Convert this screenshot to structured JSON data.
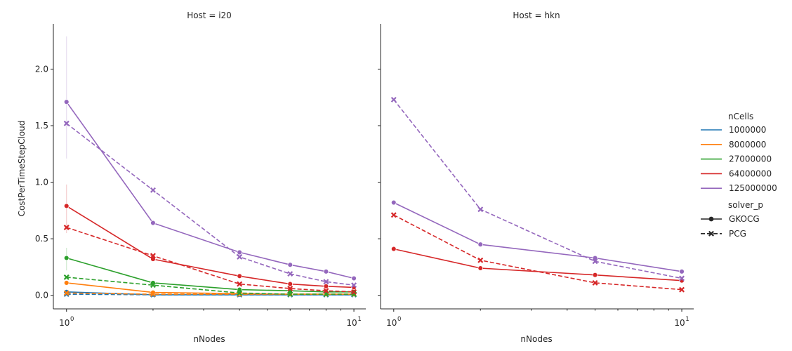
{
  "chart_data": [
    {
      "type": "line",
      "title": "Host = i20",
      "xlabel": "nNodes",
      "ylabel": "CostPerTimeStepCloud",
      "xscale": "log",
      "xlim": [
        0.9,
        11
      ],
      "ylim": [
        -0.12,
        2.4
      ],
      "yticks": [
        "0.0",
        "0.5",
        "1.0",
        "1.5",
        "2.0"
      ],
      "xticks": [
        "10",
        "10"
      ],
      "xtick_sup": [
        "0",
        "1"
      ],
      "series": [
        {
          "name": "1000000",
          "style": "GKOCG",
          "color": "#1f77b4",
          "x": [
            1,
            2,
            4,
            6,
            8,
            10
          ],
          "y": [
            0.03,
            0.005,
            0.005,
            0.005,
            0.005,
            0.005
          ]
        },
        {
          "name": "1000000",
          "style": "PCG",
          "color": "#1f77b4",
          "x": [
            1,
            2,
            4,
            6,
            8,
            10
          ],
          "y": [
            0.01,
            0.005,
            0.005,
            0.005,
            0.005,
            0.005
          ]
        },
        {
          "name": "8000000",
          "style": "GKOCG",
          "color": "#ff7f0e",
          "x": [
            1,
            2,
            4,
            6,
            8,
            10
          ],
          "y": [
            0.11,
            0.025,
            0.015,
            0.01,
            0.01,
            0.01
          ]
        },
        {
          "name": "8000000",
          "style": "PCG",
          "color": "#ff7f0e",
          "x": [
            1,
            2,
            4,
            6,
            8,
            10
          ],
          "y": [
            0.02,
            0.01,
            0.01,
            0.01,
            0.01,
            0.01
          ]
        },
        {
          "name": "27000000",
          "style": "GKOCG",
          "color": "#2ca02c",
          "x": [
            1,
            2,
            4,
            6,
            8,
            10
          ],
          "y": [
            0.33,
            0.11,
            0.05,
            0.04,
            0.03,
            0.03
          ]
        },
        {
          "name": "27000000",
          "style": "PCG",
          "color": "#2ca02c",
          "x": [
            1,
            2,
            4,
            6,
            8,
            10
          ],
          "y": [
            0.16,
            0.09,
            0.02,
            0.01,
            0.01,
            0.01
          ]
        },
        {
          "name": "64000000",
          "style": "GKOCG",
          "color": "#d62728",
          "x": [
            1,
            2,
            4,
            6,
            8,
            10
          ],
          "y": [
            0.79,
            0.32,
            0.17,
            0.1,
            0.08,
            0.07
          ]
        },
        {
          "name": "64000000",
          "style": "PCG",
          "color": "#d62728",
          "x": [
            1,
            2,
            4,
            6,
            8,
            10
          ],
          "y": [
            0.6,
            0.35,
            0.1,
            0.06,
            0.04,
            0.03
          ]
        },
        {
          "name": "125000000",
          "style": "GKOCG",
          "color": "#9467bd",
          "x": [
            1,
            2,
            4,
            6,
            8,
            10
          ],
          "y": [
            1.71,
            0.64,
            0.38,
            0.27,
            0.21,
            0.15
          ]
        },
        {
          "name": "125000000",
          "style": "PCG",
          "color": "#9467bd",
          "x": [
            1,
            2,
            4,
            6,
            8,
            10
          ],
          "y": [
            1.52,
            0.93,
            0.34,
            0.19,
            0.12,
            0.09
          ]
        }
      ],
      "error_bands": [
        {
          "series": "125000000",
          "style": "GKOCG",
          "color": "#9467bd",
          "x": 1,
          "low": 1.21,
          "high": 2.29
        },
        {
          "series": "64000000",
          "style": "GKOCG",
          "color": "#d62728",
          "x": 1,
          "low": 0.55,
          "high": 0.98
        },
        {
          "series": "27000000",
          "style": "GKOCG",
          "color": "#2ca02c",
          "x": 1,
          "low": 0.22,
          "high": 0.42
        }
      ]
    },
    {
      "type": "line",
      "title": "Host = hkn",
      "xlabel": "nNodes",
      "ylabel": "",
      "xscale": "log",
      "xlim": [
        0.9,
        11
      ],
      "ylim": [
        -0.12,
        2.4
      ],
      "xticks": [
        "10",
        "10"
      ],
      "xtick_sup": [
        "0",
        "1"
      ],
      "series": [
        {
          "name": "64000000",
          "style": "GKOCG",
          "color": "#d62728",
          "x": [
            1,
            2,
            5,
            10
          ],
          "y": [
            0.41,
            0.24,
            0.18,
            0.13
          ]
        },
        {
          "name": "64000000",
          "style": "PCG",
          "color": "#d62728",
          "x": [
            1,
            2,
            5,
            10
          ],
          "y": [
            0.71,
            0.31,
            0.11,
            0.05
          ]
        },
        {
          "name": "125000000",
          "style": "GKOCG",
          "color": "#9467bd",
          "x": [
            1,
            2,
            5,
            10
          ],
          "y": [
            0.82,
            0.45,
            0.33,
            0.21
          ]
        },
        {
          "name": "125000000",
          "style": "PCG",
          "color": "#9467bd",
          "x": [
            1,
            2,
            5,
            10
          ],
          "y": [
            1.73,
            0.76,
            0.3,
            0.15
          ]
        }
      ],
      "error_bands": []
    }
  ],
  "legend": {
    "placement": "right",
    "hue_title": "nCells",
    "hue_entries": [
      {
        "label": "1000000",
        "color": "#1f77b4"
      },
      {
        "label": "8000000",
        "color": "#ff7f0e"
      },
      {
        "label": "27000000",
        "color": "#2ca02c"
      },
      {
        "label": "64000000",
        "color": "#d62728"
      },
      {
        "label": "125000000",
        "color": "#9467bd"
      }
    ],
    "style_title": "solver_p",
    "style_entries": [
      {
        "label": "GKOCG",
        "marker": "circle",
        "dash": "solid"
      },
      {
        "label": "PCG",
        "marker": "x",
        "dash": "dashed"
      }
    ]
  }
}
